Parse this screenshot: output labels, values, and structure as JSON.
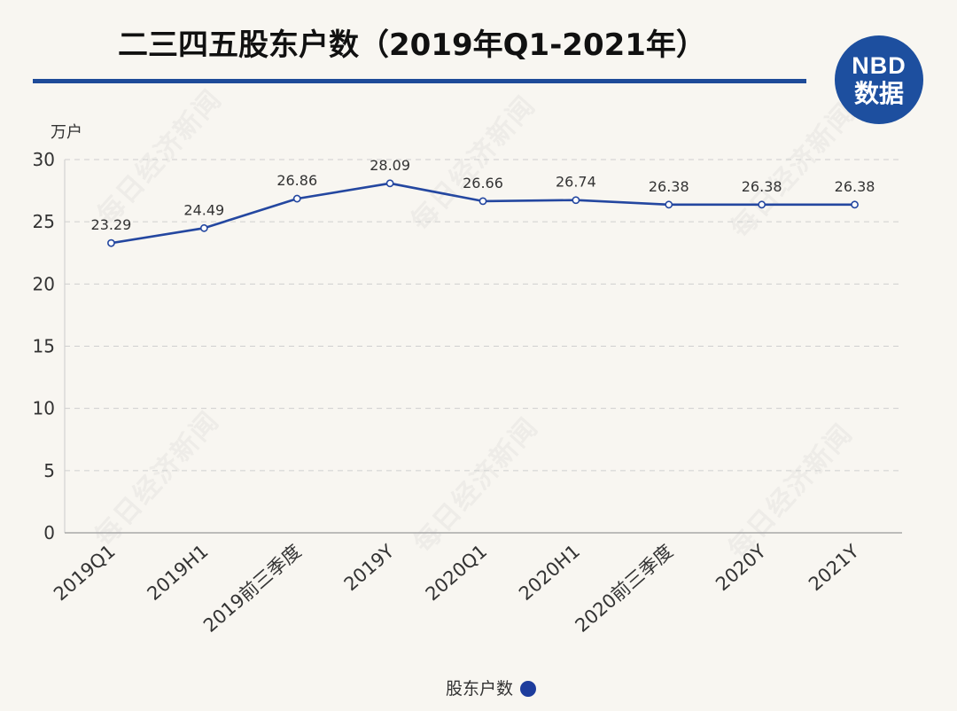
{
  "logo": {
    "line1": "NBD",
    "line2": "数据"
  },
  "watermark": "每日经济新闻",
  "colors": {
    "background": "#f8f6f1",
    "accent": "#1e4b99",
    "logo": "#1d4f9f",
    "line": "#2447a0",
    "legend_dot": "#1d3c9c",
    "grid": "#cfcfcf",
    "axis": "#a8a8a8",
    "text": "#333333"
  },
  "chart_data": {
    "type": "line",
    "title": "二三四五股东户数（2019年Q1-2021年）",
    "ylabel": "万户",
    "categories": [
      "2019Q1",
      "2019H1",
      "2019前三季度",
      "2019Y",
      "2020Q1",
      "2020H1",
      "2020前三季度",
      "2020Y",
      "2021Y"
    ],
    "series": [
      {
        "name": "股东户数",
        "values": [
          23.29,
          24.49,
          26.86,
          28.09,
          26.66,
          26.74,
          26.38,
          26.38,
          26.38
        ]
      }
    ],
    "ylim": [
      0,
      30
    ],
    "yticks": [
      0,
      5,
      10,
      15,
      20,
      25,
      30
    ],
    "grid": true,
    "data_labels": true,
    "legend_position": "bottom-center"
  }
}
